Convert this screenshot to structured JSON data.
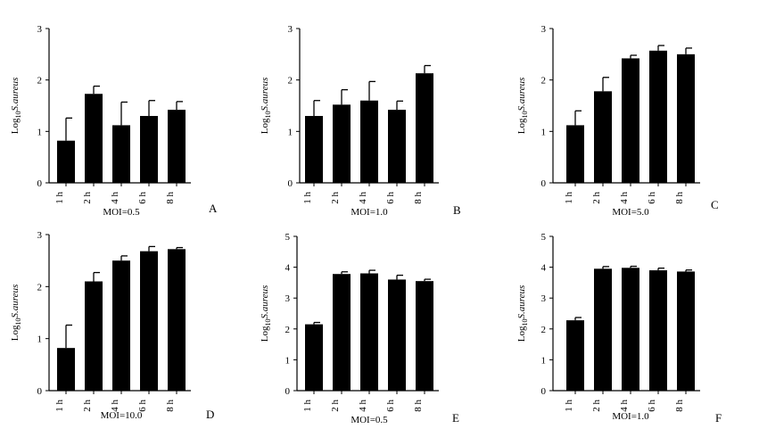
{
  "figure": {
    "bar_color": "#000000",
    "axis_color": "#000000"
  },
  "chart_data": [
    {
      "type": "bar",
      "panel": "A",
      "xlabel": "MOI=0.5",
      "ylabel_main": "Log",
      "ylabel_sub": "10",
      "ylabel_tail": "S.aureus",
      "categories": [
        "1 h",
        "2 h",
        "4 h",
        "6 h",
        "8 h"
      ],
      "values": [
        0.82,
        1.73,
        1.12,
        1.3,
        1.42
      ],
      "errors": [
        0.44,
        0.15,
        0.45,
        0.3,
        0.16
      ],
      "ylim": [
        0,
        3
      ],
      "yticks": [
        "0",
        "1",
        "2",
        "3"
      ]
    },
    {
      "type": "bar",
      "panel": "B",
      "xlabel": "MOI=1.0",
      "ylabel_main": "Log",
      "ylabel_sub": "10",
      "ylabel_tail": "S.aureus",
      "categories": [
        "1 h",
        "2 h",
        "4 h",
        "6 h",
        "8 h"
      ],
      "values": [
        1.3,
        1.52,
        1.6,
        1.42,
        2.13
      ],
      "errors": [
        0.3,
        0.29,
        0.37,
        0.17,
        0.15
      ],
      "ylim": [
        0,
        3
      ],
      "yticks": [
        "0",
        "1",
        "2",
        "3"
      ]
    },
    {
      "type": "bar",
      "panel": "C",
      "xlabel": "MOI=5.0",
      "ylabel_main": "Log",
      "ylabel_sub": "10",
      "ylabel_tail": "S.aureus",
      "categories": [
        "1 h",
        "2 h",
        "4 h",
        "6 h",
        "8 h"
      ],
      "values": [
        1.12,
        1.78,
        2.42,
        2.57,
        2.5
      ],
      "errors": [
        0.28,
        0.27,
        0.06,
        0.1,
        0.12
      ],
      "ylim": [
        0,
        3
      ],
      "yticks": [
        "0",
        "1",
        "2",
        "3"
      ]
    },
    {
      "type": "bar",
      "panel": "D",
      "xlabel": "MOI=10.0",
      "ylabel_main": "Log",
      "ylabel_sub": "10",
      "ylabel_tail": "S.aureus",
      "categories": [
        "1 h",
        "2 h",
        "4 h",
        "6 h",
        "8 h"
      ],
      "values": [
        0.82,
        2.1,
        2.5,
        2.68,
        2.72
      ],
      "errors": [
        0.44,
        0.17,
        0.09,
        0.09,
        0.03
      ],
      "ylim": [
        0,
        3
      ],
      "yticks": [
        "0",
        "1",
        "2",
        "3"
      ]
    },
    {
      "type": "bar",
      "panel": "E",
      "xlabel": "MOI=0.5",
      "ylabel_main": "Log",
      "ylabel_sub": "10",
      "ylabel_tail": "S.aureus",
      "categories": [
        "1 h",
        "2 h",
        "4 h",
        "6 h",
        "8 h"
      ],
      "values": [
        2.15,
        3.78,
        3.8,
        3.6,
        3.55
      ],
      "errors": [
        0.06,
        0.07,
        0.1,
        0.14,
        0.06
      ],
      "ylim": [
        0,
        5
      ],
      "yticks": [
        "0",
        "1",
        "2",
        "3",
        "4",
        "5"
      ]
    },
    {
      "type": "bar",
      "panel": "F",
      "xlabel": "MOI=1.0",
      "ylabel_main": "Log",
      "ylabel_sub": "10",
      "ylabel_tail": "S.aureus",
      "categories": [
        "1 h",
        "2 h",
        "4 h",
        "6 h",
        "8 h"
      ],
      "values": [
        2.28,
        3.95,
        3.98,
        3.9,
        3.86
      ],
      "errors": [
        0.09,
        0.07,
        0.05,
        0.07,
        0.05
      ],
      "ylim": [
        0,
        5
      ],
      "yticks": [
        "0",
        "1",
        "2",
        "3",
        "4",
        "5"
      ]
    }
  ]
}
